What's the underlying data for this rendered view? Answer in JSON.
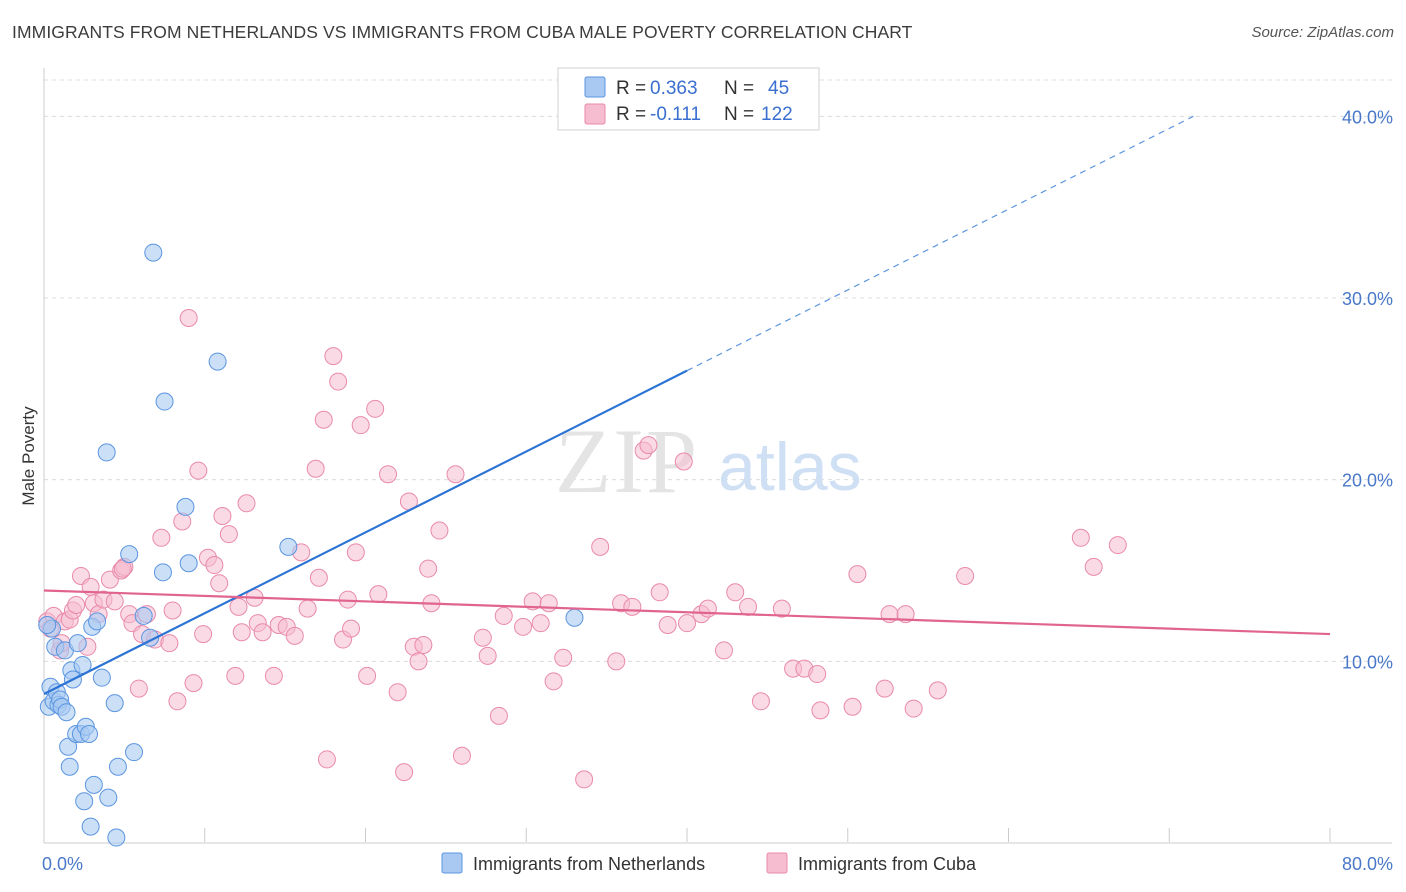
{
  "title": "IMMIGRANTS FROM NETHERLANDS VS IMMIGRANTS FROM CUBA MALE POVERTY CORRELATION CHART",
  "source": "Source: ZipAtlas.com",
  "watermark": {
    "zip": "ZIP",
    "atlas": "atlas"
  },
  "colors": {
    "blue_fill": "#a9c9f2",
    "blue_stroke": "#5b95e0",
    "blue_line": "#2b73d4",
    "pink_fill": "#f6bccf",
    "pink_stroke": "#e98aab",
    "pink_line": "#e0648f",
    "tick_text": "#4a78c9",
    "grid": "#dcdcdc"
  },
  "legend_top": {
    "rows": [
      {
        "r_label": "R =",
        "r_value": "0.363",
        "n_label": "N =",
        "n_value": "45"
      },
      {
        "r_label": "R =",
        "r_value": "-0.111",
        "n_label": "N =",
        "n_value": "122"
      }
    ]
  },
  "legend_bottom": [
    "Immigrants from Netherlands",
    "Immigrants from Cuba"
  ],
  "chart_data": {
    "type": "scatter",
    "title": "IMMIGRANTS FROM NETHERLANDS VS IMMIGRANTS FROM CUBA MALE POVERTY CORRELATION CHART",
    "xlabel": "",
    "ylabel": "Male Poverty",
    "xlim": [
      0,
      80
    ],
    "ylim": [
      0,
      42
    ],
    "x_tick_labels": [
      "0.0%",
      "80.0%"
    ],
    "y_ticks": [
      10,
      20,
      30,
      40
    ],
    "y_tick_labels": [
      "10.0%",
      "20.0%",
      "30.0%",
      "40.0%"
    ],
    "grid": "horizontal dashed",
    "legend_placement": "top-center and bottom",
    "series": [
      {
        "name": "Immigrants from Netherlands",
        "color": "#5b95e0",
        "R": 0.363,
        "N": 45,
        "trend": {
          "x0": 0,
          "y0": 8.2,
          "x1": 40,
          "y1": 26.0,
          "dash_to_x": 71.5,
          "dash_to_y": 40.0
        },
        "points": [
          [
            0.3,
            7.5
          ],
          [
            0.4,
            8.6
          ],
          [
            0.5,
            11.8
          ],
          [
            0.6,
            7.8
          ],
          [
            0.7,
            10.8
          ],
          [
            0.8,
            8.3
          ],
          [
            0.9,
            7.6
          ],
          [
            1.0,
            7.9
          ],
          [
            1.1,
            7.5
          ],
          [
            1.3,
            10.6
          ],
          [
            1.4,
            7.2
          ],
          [
            1.5,
            5.3
          ],
          [
            1.6,
            4.2
          ],
          [
            1.7,
            9.5
          ],
          [
            1.8,
            9.0
          ],
          [
            2.0,
            6.0
          ],
          [
            2.1,
            11.0
          ],
          [
            2.3,
            6.0
          ],
          [
            2.4,
            9.8
          ],
          [
            2.5,
            2.3
          ],
          [
            2.6,
            6.4
          ],
          [
            2.8,
            6.0
          ],
          [
            2.9,
            0.9
          ],
          [
            3.0,
            11.9
          ],
          [
            3.1,
            3.2
          ],
          [
            3.3,
            12.2
          ],
          [
            3.6,
            9.1
          ],
          [
            3.9,
            21.5
          ],
          [
            4.0,
            2.5
          ],
          [
            4.4,
            7.7
          ],
          [
            4.5,
            0.3
          ],
          [
            4.6,
            4.2
          ],
          [
            5.3,
            15.9
          ],
          [
            5.6,
            5.0
          ],
          [
            6.2,
            12.5
          ],
          [
            6.6,
            11.3
          ],
          [
            6.8,
            32.5
          ],
          [
            7.4,
            14.9
          ],
          [
            7.5,
            24.3
          ],
          [
            8.8,
            18.5
          ],
          [
            9.0,
            15.4
          ],
          [
            10.8,
            26.5
          ],
          [
            15.2,
            16.3
          ],
          [
            33.0,
            12.4
          ],
          [
            0.2,
            12.0
          ]
        ]
      },
      {
        "name": "Immigrants from Cuba",
        "color": "#e98aab",
        "R": -0.111,
        "N": 122,
        "trend": {
          "x0": 0,
          "y0": 13.9,
          "x1": 80,
          "y1": 11.5
        },
        "points": [
          [
            0.2,
            12.2
          ],
          [
            0.4,
            11.8
          ],
          [
            0.6,
            12.5
          ],
          [
            1.0,
            10.6
          ],
          [
            1.3,
            12.2
          ],
          [
            1.6,
            12.3
          ],
          [
            1.8,
            12.8
          ],
          [
            2.0,
            13.1
          ],
          [
            2.3,
            14.7
          ],
          [
            2.7,
            10.8
          ],
          [
            2.9,
            14.1
          ],
          [
            3.1,
            13.2
          ],
          [
            3.4,
            12.6
          ],
          [
            3.7,
            13.4
          ],
          [
            4.1,
            14.5
          ],
          [
            4.4,
            13.3
          ],
          [
            4.8,
            15.0
          ],
          [
            5.0,
            15.2
          ],
          [
            5.3,
            12.6
          ],
          [
            5.5,
            12.1
          ],
          [
            5.9,
            8.5
          ],
          [
            6.1,
            11.5
          ],
          [
            6.4,
            12.6
          ],
          [
            6.9,
            11.2
          ],
          [
            7.3,
            16.8
          ],
          [
            7.8,
            11.0
          ],
          [
            8.0,
            12.8
          ],
          [
            8.3,
            7.8
          ],
          [
            8.6,
            17.7
          ],
          [
            9.0,
            28.9
          ],
          [
            9.3,
            8.8
          ],
          [
            9.6,
            20.5
          ],
          [
            9.9,
            11.5
          ],
          [
            10.2,
            15.7
          ],
          [
            10.6,
            15.3
          ],
          [
            10.9,
            14.3
          ],
          [
            11.1,
            18.0
          ],
          [
            11.5,
            17.0
          ],
          [
            11.9,
            9.2
          ],
          [
            12.1,
            13.0
          ],
          [
            12.3,
            11.6
          ],
          [
            12.6,
            18.7
          ],
          [
            13.1,
            13.5
          ],
          [
            13.3,
            12.1
          ],
          [
            13.6,
            11.6
          ],
          [
            14.3,
            9.2
          ],
          [
            14.6,
            12.0
          ],
          [
            15.1,
            11.9
          ],
          [
            15.6,
            11.4
          ],
          [
            16.0,
            16.0
          ],
          [
            16.4,
            12.9
          ],
          [
            16.9,
            20.6
          ],
          [
            17.1,
            14.6
          ],
          [
            17.4,
            23.3
          ],
          [
            17.6,
            4.6
          ],
          [
            18.0,
            26.8
          ],
          [
            18.3,
            25.4
          ],
          [
            18.6,
            11.2
          ],
          [
            18.9,
            13.4
          ],
          [
            19.1,
            11.8
          ],
          [
            19.4,
            16.0
          ],
          [
            19.7,
            23.0
          ],
          [
            20.1,
            9.2
          ],
          [
            20.6,
            23.9
          ],
          [
            20.8,
            13.7
          ],
          [
            21.4,
            20.3
          ],
          [
            22.0,
            8.3
          ],
          [
            22.4,
            3.9
          ],
          [
            22.7,
            18.8
          ],
          [
            23.0,
            10.8
          ],
          [
            23.3,
            10.0
          ],
          [
            23.6,
            10.9
          ],
          [
            23.9,
            15.1
          ],
          [
            24.1,
            13.2
          ],
          [
            24.6,
            17.2
          ],
          [
            25.6,
            20.3
          ],
          [
            26.0,
            4.8
          ],
          [
            27.3,
            11.3
          ],
          [
            27.6,
            10.3
          ],
          [
            28.3,
            7.0
          ],
          [
            28.6,
            12.5
          ],
          [
            29.8,
            11.9
          ],
          [
            30.4,
            13.3
          ],
          [
            30.9,
            12.1
          ],
          [
            31.4,
            13.2
          ],
          [
            31.7,
            8.9
          ],
          [
            32.3,
            10.2
          ],
          [
            33.6,
            3.5
          ],
          [
            34.6,
            16.3
          ],
          [
            35.6,
            10.0
          ],
          [
            35.9,
            13.2
          ],
          [
            36.6,
            13.0
          ],
          [
            37.3,
            21.6
          ],
          [
            37.6,
            21.9
          ],
          [
            38.3,
            13.8
          ],
          [
            38.8,
            12.0
          ],
          [
            39.8,
            21.0
          ],
          [
            40.0,
            12.1
          ],
          [
            40.9,
            12.6
          ],
          [
            41.3,
            12.9
          ],
          [
            42.3,
            10.6
          ],
          [
            43.0,
            13.8
          ],
          [
            43.8,
            13.0
          ],
          [
            44.6,
            7.8
          ],
          [
            45.9,
            12.9
          ],
          [
            46.6,
            9.6
          ],
          [
            47.3,
            9.6
          ],
          [
            48.1,
            9.3
          ],
          [
            48.3,
            7.3
          ],
          [
            50.3,
            7.5
          ],
          [
            50.6,
            14.8
          ],
          [
            52.3,
            8.5
          ],
          [
            52.6,
            12.6
          ],
          [
            53.6,
            12.6
          ],
          [
            54.1,
            7.4
          ],
          [
            55.6,
            8.4
          ],
          [
            57.3,
            14.7
          ],
          [
            64.5,
            16.8
          ],
          [
            65.3,
            15.2
          ],
          [
            66.8,
            16.4
          ],
          [
            1.1,
            11.0
          ],
          [
            4.9,
            15.1
          ]
        ]
      }
    ]
  }
}
